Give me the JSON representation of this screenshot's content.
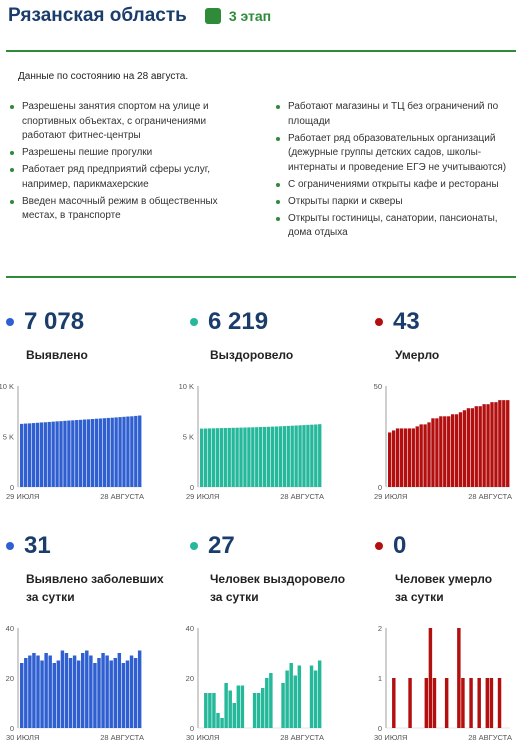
{
  "header": {
    "title": "Рязанская область",
    "stage": "3 этап",
    "stage_color": "#2e8b3a"
  },
  "info": {
    "date_note": "Данные по состоянию на 28 августа.",
    "left": [
      "Разрешены занятия спортом на улице и спортивных объектах, с ограничениями работают фитнес-центры",
      "Разрешены пешие прогулки",
      "Работает ряд предприятий сферы услуг, например, парикмахерские",
      "Введен масочный режим в общественных местах, в транспорте"
    ],
    "right": [
      "Работают магазины и ТЦ без ограничений по площади",
      "Работает ряд образовательных организаций (дежурные группы детских садов, школы-интернаты и проведение ЕГЭ не учитываются)",
      "С ограничениями открыты кафе и рестораны",
      "Открыты парки и скверы",
      "Открыты гостиницы, санатории, пансионаты, дома отдыха"
    ]
  },
  "stats": {
    "detected": {
      "value": "7 078",
      "label": "Выявлено",
      "color": "#2f5fd0"
    },
    "recovered": {
      "value": "6 219",
      "label": "Выздоровело",
      "color": "#25b89a"
    },
    "died": {
      "value": "43",
      "label": "Умерло",
      "color": "#b40f0f"
    },
    "detected_day": {
      "value": "31",
      "label1": "Выявлено заболевших",
      "label2": "за сутки",
      "color": "#2f5fd0"
    },
    "recovered_day": {
      "value": "27",
      "label1": "Человек выздоровело",
      "label2": "за сутки",
      "color": "#25b89a"
    },
    "died_day": {
      "value": "0",
      "label1": "Человек умерло",
      "label2": "за сутки",
      "color": "#b40f0f"
    }
  },
  "chart_data": [
    {
      "type": "bar",
      "id": "detected",
      "color": "#2f5fd0",
      "ylim": [
        0,
        10000
      ],
      "yticks": [
        "0",
        "5 K",
        "10 K"
      ],
      "ytick_values": [
        0,
        5000,
        10000
      ],
      "x_start": "29 ИЮЛЯ",
      "x_end": "28 АВГУСТА",
      "values": [
        6250,
        6280,
        6300,
        6330,
        6360,
        6390,
        6410,
        6440,
        6470,
        6500,
        6520,
        6550,
        6580,
        6600,
        6630,
        6650,
        6680,
        6700,
        6730,
        6760,
        6780,
        6810,
        6840,
        6860,
        6890,
        6920,
        6950,
        6980,
        7000,
        7040,
        7078
      ]
    },
    {
      "type": "bar",
      "id": "recovered",
      "color": "#25b89a",
      "ylim": [
        0,
        10000
      ],
      "yticks": [
        "0",
        "5 K",
        "10 K"
      ],
      "ytick_values": [
        0,
        5000,
        10000
      ],
      "x_start": "29 ИЮЛЯ",
      "x_end": "28 АВГУСТА",
      "values": [
        5780,
        5790,
        5800,
        5810,
        5820,
        5830,
        5840,
        5850,
        5860,
        5870,
        5880,
        5890,
        5900,
        5910,
        5920,
        5940,
        5950,
        5960,
        5980,
        5990,
        6010,
        6030,
        6050,
        6070,
        6090,
        6110,
        6130,
        6150,
        6170,
        6190,
        6219
      ]
    },
    {
      "type": "bar",
      "id": "died",
      "color": "#b40f0f",
      "ylim": [
        0,
        50
      ],
      "yticks": [
        "0",
        "50"
      ],
      "ytick_values": [
        0,
        50
      ],
      "x_start": "29 ИЮЛЯ",
      "x_end": "28 АВГУСТА",
      "values": [
        27,
        28,
        29,
        29,
        29,
        29,
        29,
        30,
        31,
        31,
        32,
        34,
        34,
        35,
        35,
        35,
        36,
        36,
        37,
        38,
        39,
        39,
        40,
        40,
        41,
        41,
        42,
        42,
        43,
        43,
        43
      ]
    },
    {
      "type": "bar",
      "id": "detected_day",
      "color": "#2f5fd0",
      "ylim": [
        0,
        40
      ],
      "yticks": [
        "0",
        "20",
        "40"
      ],
      "ytick_values": [
        0,
        20,
        40
      ],
      "x_start": "30 ИЮЛЯ",
      "x_end": "28 АВГУСТА",
      "values": [
        26,
        28,
        29,
        30,
        29,
        27,
        30,
        29,
        26,
        27,
        31,
        30,
        28,
        29,
        27,
        30,
        31,
        29,
        26,
        28,
        30,
        29,
        27,
        28,
        30,
        26,
        27,
        29,
        28,
        31
      ]
    },
    {
      "type": "bar",
      "id": "recovered_day",
      "color": "#25b89a",
      "ylim": [
        0,
        40
      ],
      "yticks": [
        "0",
        "20",
        "40"
      ],
      "ytick_values": [
        0,
        20,
        40
      ],
      "x_start": "30 ИЮЛЯ",
      "x_end": "28 АВГУСТА",
      "values": [
        0,
        14,
        14,
        14,
        6,
        4,
        18,
        15,
        10,
        17,
        17,
        0,
        0,
        14,
        14,
        16,
        20,
        22,
        0,
        0,
        18,
        23,
        26,
        21,
        25,
        0,
        0,
        25,
        23,
        27
      ]
    },
    {
      "type": "bar",
      "id": "died_day",
      "color": "#b40f0f",
      "ylim": [
        0,
        2
      ],
      "yticks": [
        "0",
        "1",
        "2"
      ],
      "ytick_values": [
        0,
        1,
        2
      ],
      "x_start": "30 ИЮЛЯ",
      "x_end": "28 АВГУСТА",
      "values": [
        0,
        1,
        0,
        0,
        0,
        1,
        0,
        0,
        0,
        1,
        2,
        1,
        0,
        0,
        1,
        0,
        0,
        2,
        1,
        0,
        1,
        0,
        1,
        0,
        1,
        1,
        0,
        1,
        0,
        0
      ]
    }
  ]
}
